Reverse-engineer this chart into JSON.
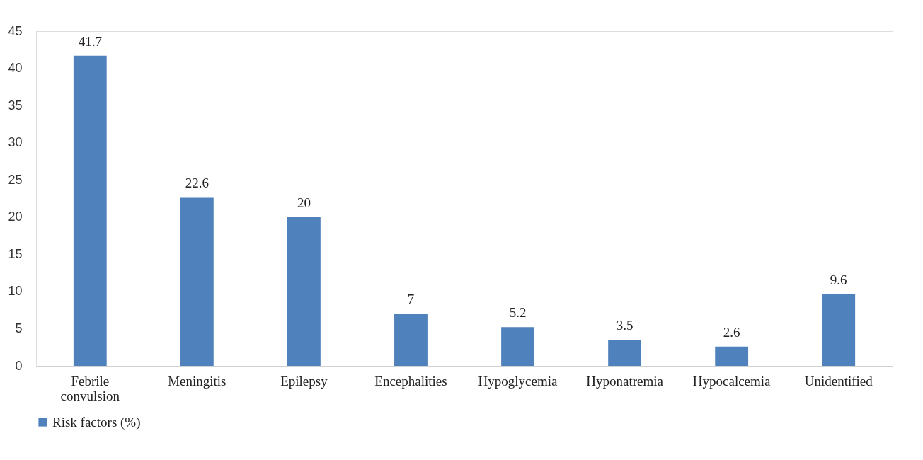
{
  "chart_data": {
    "type": "bar",
    "categories": [
      "Febrile convulsion",
      "Meningitis",
      "Epilepsy",
      "Encephalities",
      "Hypoglycemia",
      "Hyponatremia",
      "Hypocalcemia",
      "Unidentified"
    ],
    "series": [
      {
        "name": "Risk factors (%)",
        "color": "#4f81bd",
        "values": [
          41.7,
          22.6,
          20,
          7,
          5.2,
          3.5,
          2.6,
          9.6
        ]
      }
    ],
    "ylim": [
      0,
      45
    ],
    "yticks": [
      0,
      5,
      10,
      15,
      20,
      25,
      30,
      35,
      40,
      45
    ],
    "grid": false,
    "legend": "bottom",
    "data_labels": true
  }
}
